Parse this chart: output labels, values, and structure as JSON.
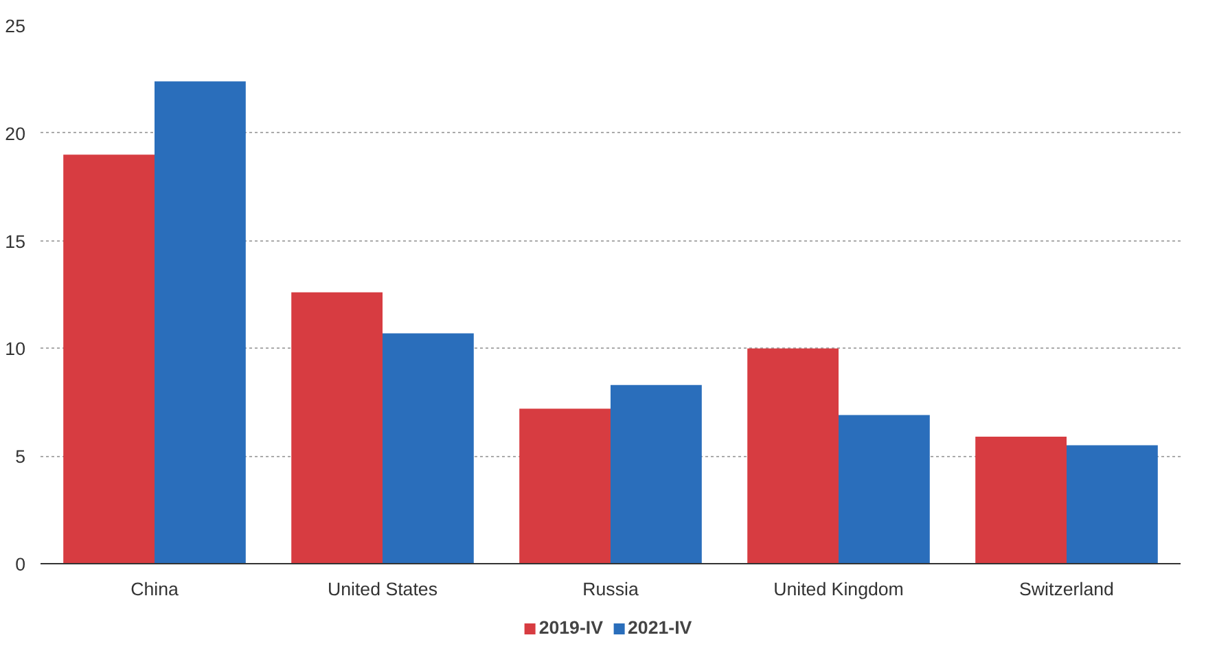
{
  "chart_data": {
    "type": "bar",
    "categories": [
      "China",
      "United States",
      "Russia",
      "United Kingdom",
      "Switzerland"
    ],
    "series": [
      {
        "name": "2019-IV",
        "color": "#d73c41",
        "values": [
          19.0,
          12.6,
          7.2,
          10.0,
          5.9
        ]
      },
      {
        "name": "2021-IV",
        "color": "#2a6ebb",
        "values": [
          22.4,
          10.7,
          8.3,
          6.9,
          5.5
        ]
      }
    ],
    "ylim": [
      0,
      25
    ],
    "yticks": [
      0,
      5,
      10,
      15,
      20,
      25
    ],
    "grid": "y",
    "legend": "bottom"
  }
}
